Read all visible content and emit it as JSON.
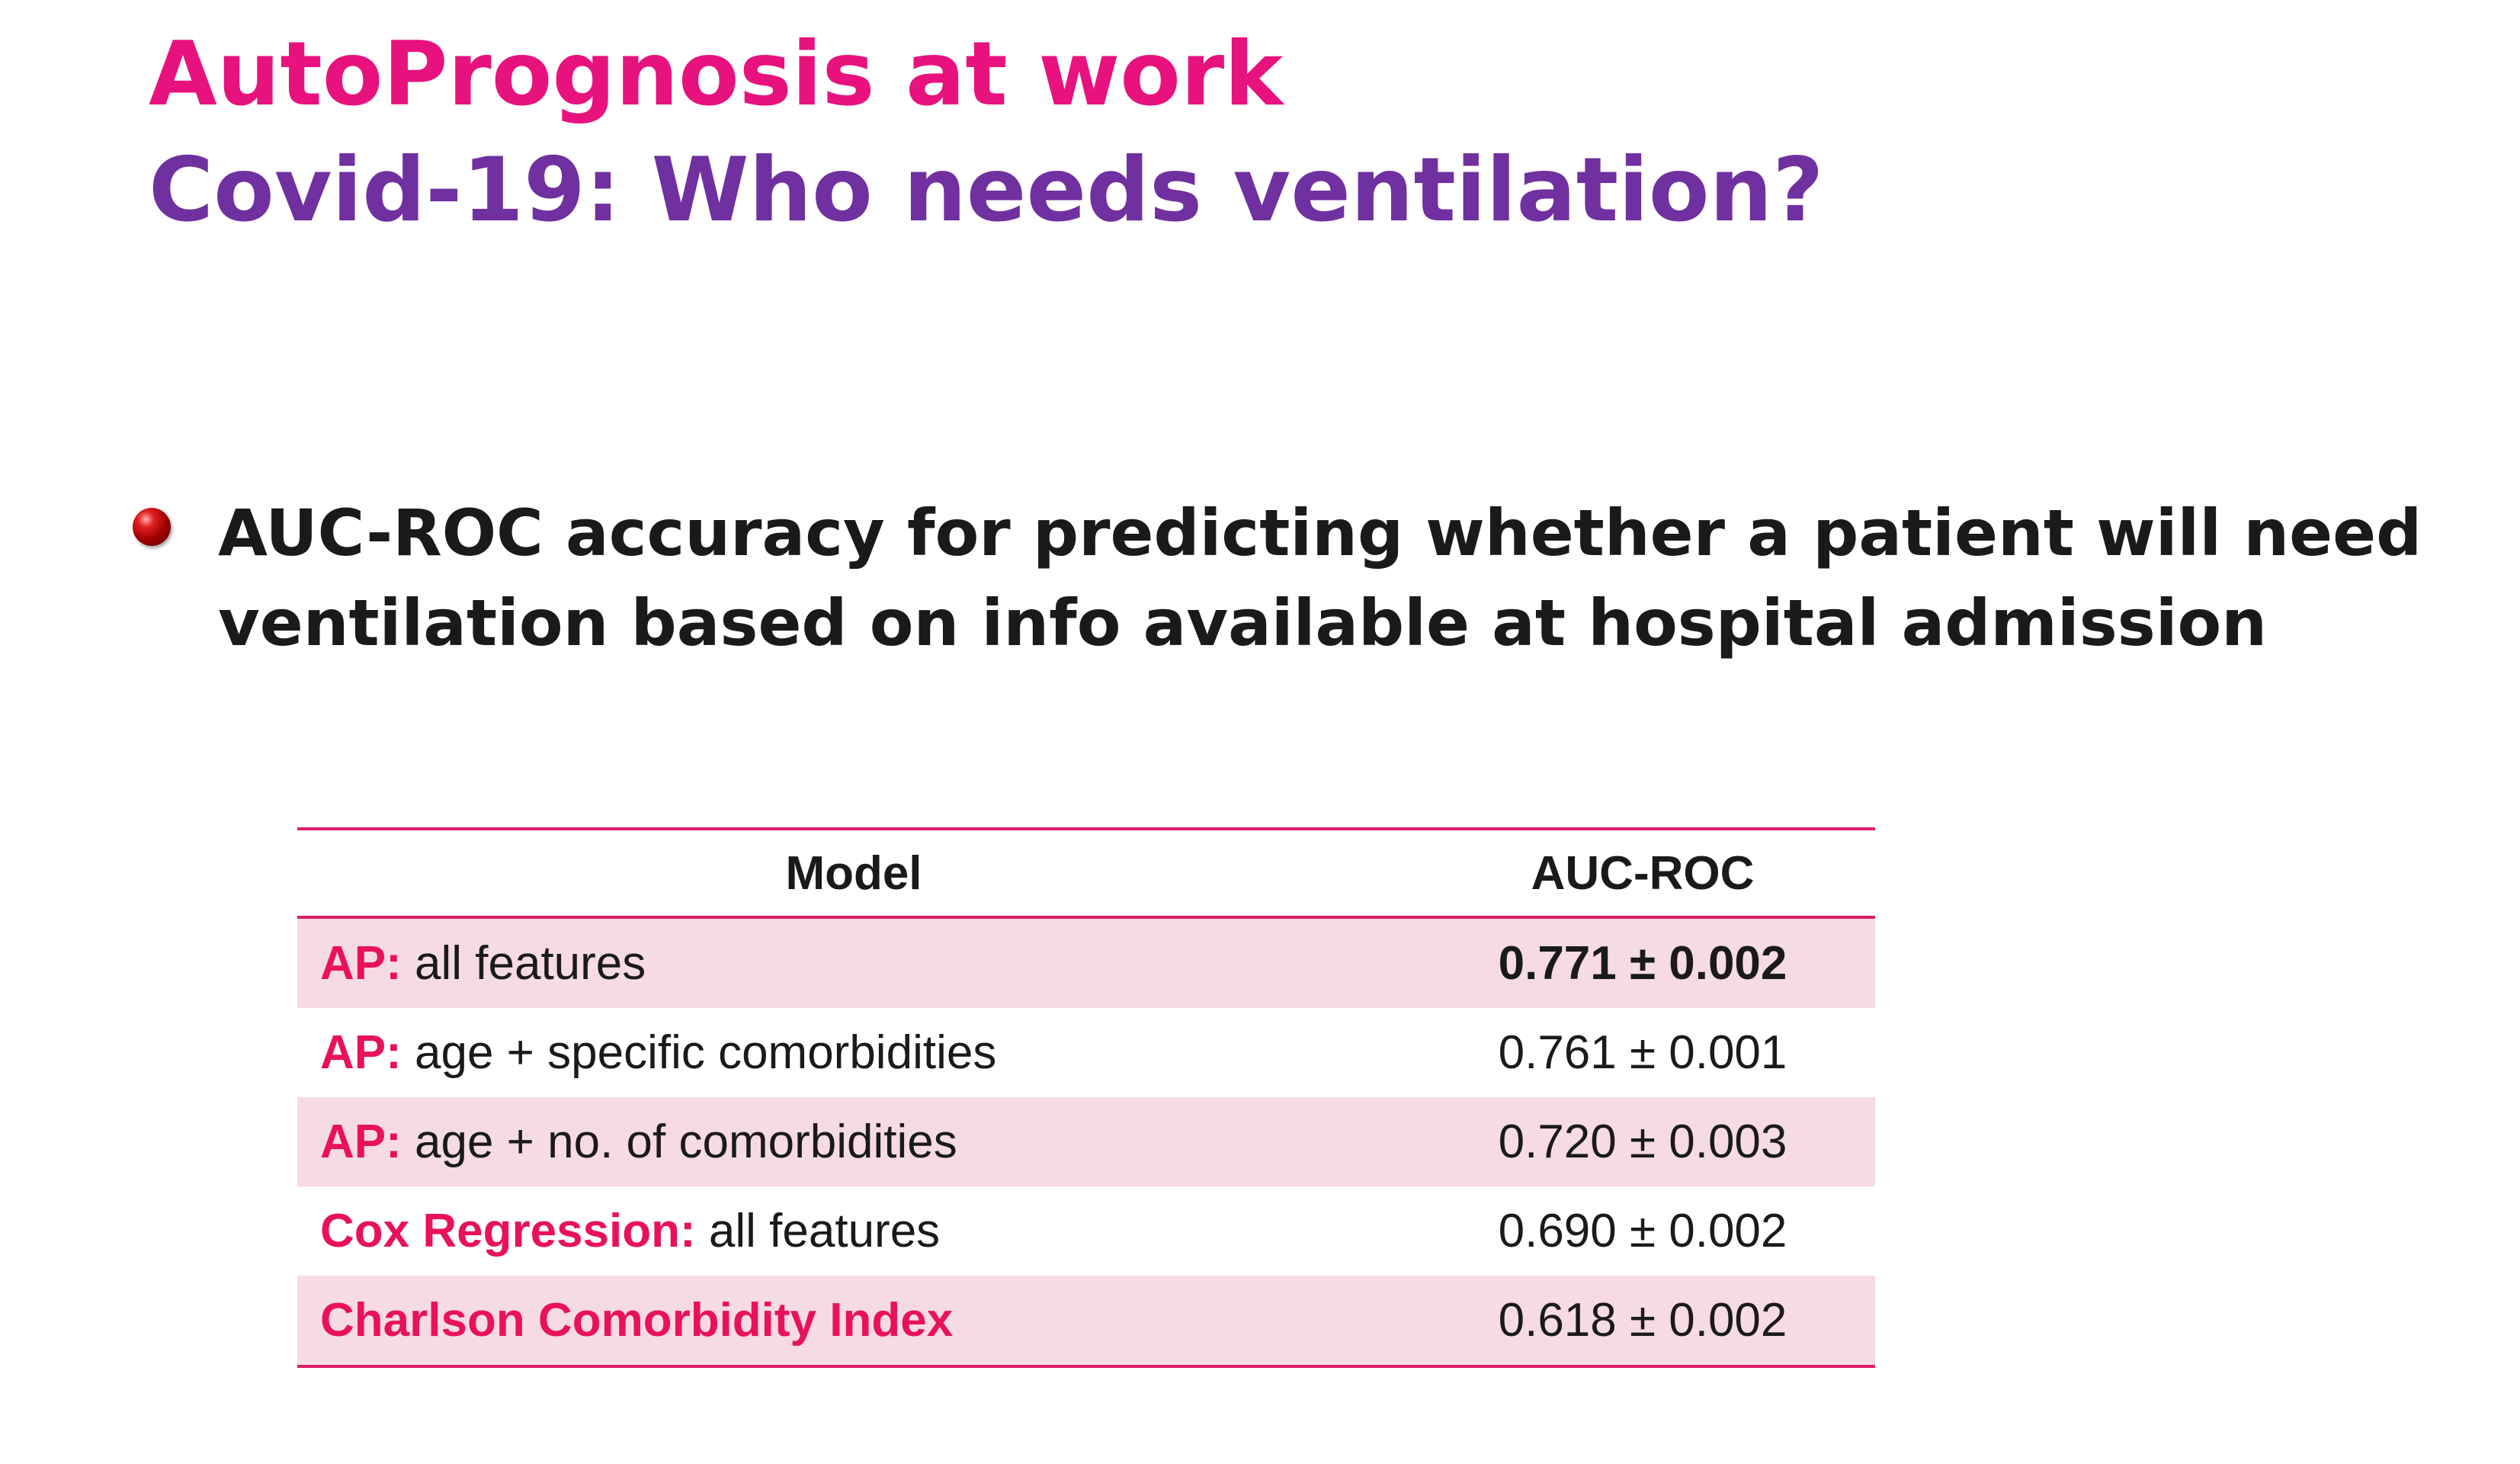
{
  "colors": {
    "title_line1": "#e8127e",
    "title_line2": "#7030a0",
    "accent": "#e8125a",
    "row_shade": "#f6dbe3",
    "rule": "#d91e6a"
  },
  "title": {
    "line1": "AutoPrognosis at work",
    "line2": "Covid-19: Who needs ventilation?"
  },
  "bullet": {
    "icon": "red-sphere-bullet-icon",
    "text": "AUC-ROC accuracy for predicting whether a patient will need ventilation based on info available at hospital admission"
  },
  "table": {
    "headers": {
      "model": "Model",
      "auc": "AUC-ROC"
    },
    "rows": [
      {
        "prefix": "AP:",
        "rest": " all features",
        "auc": "0.771 ± 0.002",
        "auc_bold": true,
        "shaded": true
      },
      {
        "prefix": "AP:",
        "rest": " age + specific comorbidities",
        "auc": "0.761 ± 0.001",
        "auc_bold": false,
        "shaded": false
      },
      {
        "prefix": "AP:",
        "rest": " age + no. of comorbidities",
        "auc": "0.720 ± 0.003",
        "auc_bold": false,
        "shaded": true
      },
      {
        "prefix": "Cox Regression:",
        "rest": " all features",
        "auc": "0.690 ± 0.002",
        "auc_bold": false,
        "shaded": false
      },
      {
        "prefix": "Charlson Comorbidity Index",
        "rest": "",
        "auc": "0.618 ± 0.002",
        "auc_bold": false,
        "shaded": true
      }
    ]
  }
}
